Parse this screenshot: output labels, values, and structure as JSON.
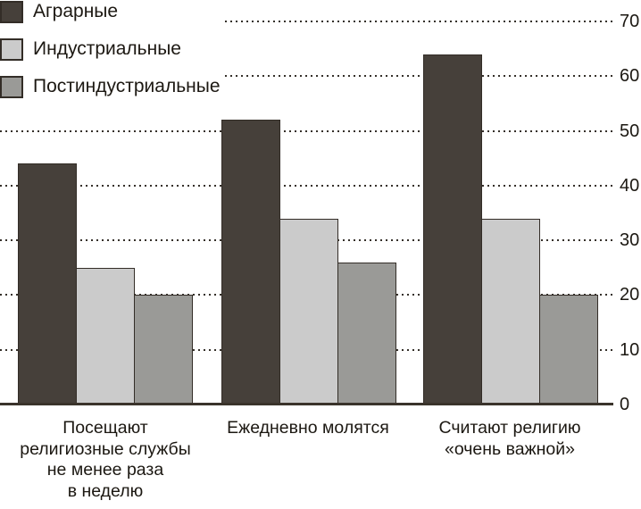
{
  "chart_data": {
    "type": "bar",
    "title": "",
    "xlabel": "",
    "ylabel": "",
    "ylim": [
      0,
      70
    ],
    "yticks": [
      0,
      10,
      20,
      30,
      40,
      50,
      60,
      70
    ],
    "grid": "horizontal-dotted",
    "legend_position": "top-left",
    "value_axis_side": "right",
    "categories": [
      "Посещают религиозные службы не менее раза в неделю",
      "Ежедневно молятся",
      "Считают религию «очень важной»"
    ],
    "category_display_lines": [
      "Посещают\nрелигиозные службы\nне менее раза\nв неделю",
      "Ежедневно молятся",
      "Считают религию\n«очень важной»"
    ],
    "series": [
      {
        "name": "Аграрные",
        "slug": "agrarian",
        "color": "#46403a",
        "border": "#332d27",
        "values": [
          44,
          52,
          64
        ]
      },
      {
        "name": "Индустриальные",
        "slug": "industrial",
        "color": "#cbcbcb",
        "border": "#332d27",
        "values": [
          25,
          34,
          34
        ]
      },
      {
        "name": "Постиндустриальные",
        "slug": "postindustrial",
        "color": "#9a9a97",
        "border": "#332d27",
        "values": [
          20,
          26,
          20
        ]
      }
    ],
    "colors": {
      "text": "#1c1812",
      "gridline": "#35302a",
      "axis_line": "#3a332b",
      "background": "#ffffff"
    }
  }
}
